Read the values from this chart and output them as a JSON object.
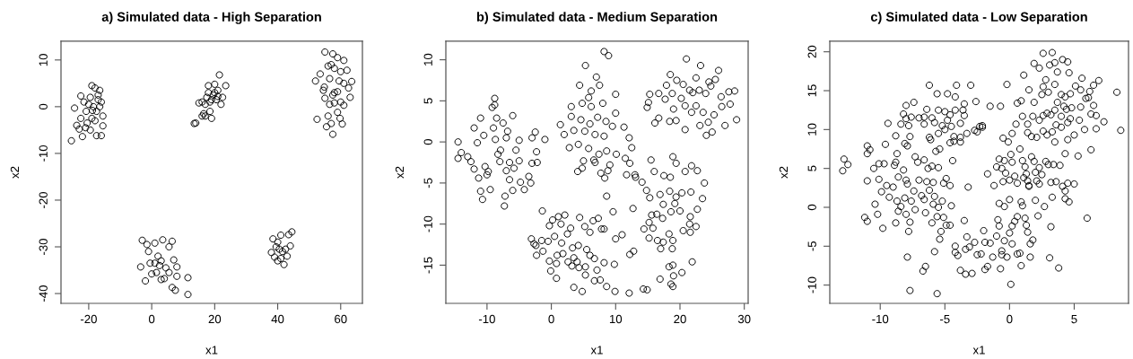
{
  "chart_data": [
    {
      "type": "scatter",
      "title": "a) Simulated data - High Separation",
      "xlabel": "x1",
      "ylabel": "x2",
      "xlim": [
        -28.8,
        66.9
      ],
      "ylim": [
        -42.1,
        14
      ],
      "xticks": [
        -20,
        0,
        20,
        40,
        60
      ],
      "yticks": [
        -40,
        -30,
        -20,
        -10,
        0,
        10
      ],
      "marker": "circle",
      "series": [
        {
          "color": "#000000",
          "x": [
            -25.5,
            -24.5,
            -23.8,
            -23,
            -22.5,
            -22,
            -22.5,
            -21,
            -20.8,
            -19.5,
            -19,
            -18,
            -17.5,
            -16,
            -16.5,
            -15.5,
            -15.5,
            -17,
            -18.5,
            -19,
            -20,
            -17.5,
            -18,
            -16.5,
            -19.5,
            -20.5,
            -17,
            -16,
            -21.5,
            -18.8
          ],
          "values": [
            -7.3,
            -0.3,
            -4,
            -4.8,
            2.3,
            -6.4,
            -2.5,
            -4.5,
            -1,
            -5,
            4.5,
            4,
            -6.2,
            -6.2,
            3.5,
            -4.1,
            -2,
            1.5,
            0,
            -2.5,
            0.5,
            -1,
            -3,
            0,
            2,
            -3.5,
            2.5,
            1,
            1,
            -0.8
          ]
        },
        {
          "color": "#000000",
          "x": [
            13.5,
            14,
            15,
            16,
            16.5,
            17,
            17.5,
            18,
            18.5,
            19,
            19.5,
            20,
            20.5,
            21,
            21.5,
            22,
            22.5,
            23.5,
            20,
            18.5,
            17,
            19,
            21,
            16,
            18
          ],
          "values": [
            -3.6,
            -3.5,
            0.8,
            -2,
            -1.5,
            -2,
            2,
            4.5,
            1,
            -2.5,
            2.5,
            3,
            1.5,
            3.5,
            6.8,
            0.5,
            2,
            4.5,
            4.8,
            -1,
            0.5,
            1.5,
            2.2,
            1,
            3
          ]
        },
        {
          "color": "#000000",
          "x": [
            55,
            57.5,
            59,
            61,
            52,
            53.5,
            54.5,
            52.5,
            55.5,
            57.5,
            56,
            59,
            60.5,
            61,
            62.5,
            63.5,
            63,
            56,
            57,
            58,
            59.5,
            60,
            61,
            58,
            57.5,
            59,
            56.5,
            55,
            58,
            60,
            57,
            59.8,
            56.5,
            62,
            54.8
          ],
          "values": [
            11.7,
            11.3,
            10.5,
            9.9,
            5.5,
            7,
            3.5,
            -2.7,
            -4.3,
            -5.9,
            -2,
            -1.2,
            -3.7,
            0.3,
            4,
            5.4,
            2,
            8.7,
            9,
            8.2,
            5.5,
            7.5,
            5,
            3,
            2.5,
            3.2,
            0.5,
            1.8,
            0.8,
            1,
            -3.6,
            -2.5,
            6,
            7.8,
            4.2
          ]
        },
        {
          "color": "#000000",
          "x": [
            -3.5,
            -2,
            -1.5,
            -3,
            -1,
            1,
            3.5,
            6.5,
            5.5,
            7,
            8,
            8,
            6.5,
            7.5,
            11.5,
            11.5,
            2.5,
            3,
            1.5,
            4,
            0,
            2,
            4.5,
            5.5,
            -0.5,
            3,
            1
          ],
          "values": [
            -34.3,
            -37.3,
            -29.5,
            -28.6,
            -31,
            -29.2,
            -28.5,
            -28.8,
            -30,
            -32.8,
            -34.3,
            -36.3,
            -38.7,
            -39.3,
            -36.6,
            -40.2,
            -34,
            -33,
            -35.5,
            -36.8,
            -35.8,
            -32,
            -34.5,
            -35.5,
            -33.5,
            -37,
            -33.5
          ]
        },
        {
          "color": "#000000",
          "x": [
            38,
            38.5,
            39,
            40,
            41,
            42,
            43.5,
            44.5,
            43,
            44,
            40.5,
            41.5,
            40,
            42.5,
            41,
            39.5
          ],
          "values": [
            -31.2,
            -28.3,
            -32.2,
            -33,
            -27.5,
            -33.8,
            -27.4,
            -26.8,
            -32,
            -29.8,
            -30.5,
            -31,
            -29,
            -30.5,
            -32.5,
            -30
          ]
        }
      ]
    },
    {
      "type": "scatter",
      "title": "b) Simulated data - Medium Separation",
      "xlabel": "x1",
      "ylabel": "x2",
      "xlim": [
        -16.4,
        30.6
      ],
      "ylim": [
        -19.65,
        12.25
      ],
      "xticks": [
        -10,
        0,
        10,
        20,
        30
      ],
      "yticks": [
        -15,
        -10,
        -5,
        0,
        5,
        10
      ],
      "marker": "circle",
      "series": [
        {
          "color": "#000000",
          "x": [
            -14.5,
            -14.5,
            -14,
            -13,
            -12.5,
            -12,
            -11.5,
            -12,
            -11,
            -11,
            -10.7,
            -10.5,
            -10.3,
            -10,
            -9.5,
            -9.2,
            -8.8,
            -8.8,
            -9,
            -8.5,
            -8.7,
            -8.3,
            -8,
            -7.5,
            -7.3,
            -7.2,
            -7,
            -7,
            -6.5,
            -6.5,
            -6,
            -6,
            -5.5,
            -5,
            -5,
            -4.8,
            -4.2,
            -3.5,
            -3.2,
            -3,
            -2.5,
            -2.2,
            -2.3,
            -1,
            -3,
            -9.8,
            -11.3,
            -7.9,
            -6.8,
            -5.8
          ],
          "values": [
            0,
            -2,
            -1.3,
            -1.8,
            -2.4,
            -3.3,
            -0.1,
            1.7,
            2.9,
            -6,
            -7,
            0.8,
            -3,
            -4,
            -5.8,
            4.2,
            5.3,
            4.5,
            1.7,
            2.9,
            0.3,
            -1.5,
            -2.4,
            2.3,
            -7.8,
            -6.6,
            0.5,
            -3.5,
            -4.6,
            -2.5,
            3.2,
            -5.9,
            -1,
            0.2,
            -2.3,
            -4.9,
            -5.8,
            -4.2,
            -5,
            0.5,
            1.2,
            -2.5,
            -1.2,
            0.3,
            -2.6,
            -3.6,
            -4.4,
            -1,
            1.3,
            -3.2
          ]
        },
        {
          "color": "#000000",
          "x": [
            5.3,
            8.2,
            8.9,
            4.4,
            7,
            7.5,
            6.2,
            3.1,
            4.8,
            5.8,
            6.2,
            8,
            10,
            1.4,
            3.1,
            4.6,
            6,
            7.2,
            8.5,
            10,
            2,
            3.5,
            5.2,
            6.8,
            8.2,
            9.5,
            11.3,
            12.1,
            2.8,
            4.2,
            5.8,
            7.4,
            8.6,
            10.1,
            11.5,
            12.5,
            12.2,
            4.1,
            5,
            6.6,
            7.7,
            8.3,
            9.1,
            8.8,
            11.7,
            4.8,
            8.6,
            6.8
          ],
          "values": [
            9.3,
            11,
            10.5,
            6.9,
            7.9,
            6.9,
            6.2,
            4.3,
            4.7,
            5.4,
            4.3,
            4.7,
            5.8,
            2.1,
            3.1,
            2.7,
            2.2,
            3,
            2.5,
            3.5,
            0.9,
            1.4,
            1.3,
            0.9,
            0.7,
            1.9,
            1.8,
            0.5,
            -0.7,
            -0.3,
            -0.8,
            -1.5,
            -1.1,
            -1.5,
            -2,
            -0.7,
            -2.6,
            -3.6,
            -2.3,
            -2.2,
            -3.8,
            -4.4,
            -2.8,
            -3.5,
            -4,
            -3.2,
            -6.6,
            -2.5
          ]
        },
        {
          "color": "#000000",
          "x": [
            21,
            23.2,
            26,
            18.5,
            19.5,
            20.5,
            22.5,
            24.5,
            25.5,
            27.6,
            28.5,
            15.3,
            15.1,
            16.7,
            17.9,
            18.8,
            20.2,
            21.5,
            22,
            23,
            24,
            24.8,
            26.4,
            14.9,
            17.7,
            19,
            20.8,
            22.5,
            23.6,
            25.3,
            26.5,
            27.8,
            16.1,
            16.7,
            18.4,
            19.4,
            20.8,
            23.1,
            24.1,
            25,
            27,
            28.8,
            21.8,
            24.4
          ],
          "values": [
            10.1,
            9.3,
            8.7,
            8.2,
            7.5,
            7,
            7.8,
            7.3,
            7.6,
            6.1,
            6.2,
            5.8,
            4.8,
            5.9,
            6.9,
            5.9,
            5.3,
            6.3,
            6,
            6.3,
            5.9,
            6.8,
            5.5,
            4.2,
            5.2,
            4,
            4.4,
            4.4,
            3.6,
            3.3,
            4.3,
            4.6,
            2.3,
            2.9,
            2.5,
            2.6,
            1.5,
            2,
            0.8,
            1.2,
            2,
            2.7,
            3.6,
            2.4
          ]
        },
        {
          "color": "#000000",
          "x": [
            15.5,
            16,
            18.9,
            19.4,
            21.8,
            22.7,
            20.8,
            23.8,
            17.5,
            18.5,
            16.9,
            15.3,
            17.4,
            18.4,
            19.4,
            20.3,
            21.7,
            23.5,
            22.7,
            14.4,
            15.2,
            15.6,
            16.4,
            17.3,
            18.6,
            19.2,
            20,
            21.6,
            21.5,
            22.5,
            20.5,
            21.6,
            15.2,
            15.8,
            16.5,
            17.4,
            17,
            18.3,
            18.9,
            18.8,
            18.3,
            18.9,
            18.6,
            18.9,
            19,
            20.3,
            21.9,
            16.9,
            12.7,
            13.1,
            14.1,
            14.8,
            13
          ],
          "values": [
            -2.2,
            -3.6,
            -1.8,
            -2.6,
            -2.9,
            -3.5,
            -3.6,
            -5,
            -4.1,
            -4.3,
            -6.4,
            -6.8,
            -7.6,
            -6,
            -6.7,
            -6.2,
            -6.1,
            -6.9,
            -8.2,
            -10.6,
            -9.8,
            -8.9,
            -8.8,
            -9.3,
            -8.5,
            -7.5,
            -8.4,
            -9.1,
            -10,
            -10.3,
            -10.8,
            -11,
            -11.7,
            -10.5,
            -12,
            -12.2,
            -13,
            -11.2,
            -12,
            -13,
            -15.2,
            -15,
            -17.3,
            -17.6,
            -16.3,
            -15.9,
            -14.6,
            -16.7,
            -8.1,
            -4.3,
            -4.9,
            -5.9,
            -4
          ]
        },
        {
          "color": "#000000",
          "x": [
            -1.4,
            0.2,
            1.1,
            2.1,
            4.4,
            6.5,
            7.3,
            -0.3,
            1.5,
            3,
            5.2,
            6,
            7.8,
            -3.1,
            -2.4,
            -1.5,
            -0.5,
            0.5,
            1.6,
            2.5,
            3.3,
            4.2,
            -2.7,
            -2.3,
            -1.3,
            0.9,
            1.8,
            3.5,
            4,
            5.5,
            6,
            6.7,
            -0.3,
            0.8,
            2.6,
            3.2,
            4.3,
            5.3,
            7.1,
            -0.1,
            0.8,
            5.3,
            6.7,
            7.6,
            8.2,
            3.5,
            4.8,
            8.6,
            9.9,
            12.1,
            14.3,
            14.9,
            9.8,
            10,
            11,
            12.2,
            12.8,
            9.6,
            8.2
          ],
          "values": [
            -8.4,
            -9.5,
            -9.1,
            -8.9,
            -9.2,
            -9.6,
            -9.3,
            -10.2,
            -10,
            -10.5,
            -10.3,
            -11,
            -10.6,
            -11.8,
            -12.6,
            -12,
            -12.1,
            -11.5,
            -12.3,
            -11.2,
            -12.9,
            -12.6,
            -12.4,
            -13.8,
            -13.3,
            -13.8,
            -13.6,
            -14.1,
            -14.6,
            -13.1,
            -13.8,
            -14.2,
            -14.5,
            -14.8,
            -14.6,
            -15.1,
            -15.3,
            -15.2,
            -15.6,
            -15.7,
            -16.6,
            -16.2,
            -16.9,
            -16.8,
            -14.7,
            -17.7,
            -18.2,
            -17.6,
            -18.2,
            -18.4,
            -17.9,
            -18,
            -14.9,
            -11.8,
            -11.3,
            -13.7,
            -13.3,
            -8.5,
            -10.6
          ]
        }
      ]
    },
    {
      "type": "scatter",
      "title": "c) Simulated data - Low Separation",
      "xlabel": "x1",
      "ylabel": "x2",
      "xlim": [
        -13.9,
        9.2
      ],
      "ylim": [
        -12.35,
        21.35
      ],
      "xticks": [
        -10,
        -5,
        0,
        5
      ],
      "yticks": [
        -10,
        -5,
        0,
        5,
        10,
        15,
        20
      ],
      "marker": "circle",
      "series": [
        {
          "color": "#000000",
          "x": [
            -8,
            -7.4,
            -6.2,
            -5.6,
            -4.8,
            -4.2,
            -4.1,
            -3,
            -2.6,
            -3.5,
            -6.4,
            -8.2,
            -8,
            -7.6,
            -7,
            -6.6,
            -6,
            -5.5,
            -5,
            -4.6,
            -4.2,
            -3.6,
            -3.5,
            -9.4,
            -8.4,
            -7.8,
            -6.6,
            -5.8,
            -5.2,
            -4.8,
            -4.5,
            -3.8,
            -2.7,
            -2.3,
            -2.1,
            -8.8,
            -7.7,
            -6.2,
            -5.5,
            -5,
            -4.3,
            -3.8,
            -3.3,
            -2.5,
            -8.1,
            -7.9,
            -5.7,
            -5.4,
            -4.6,
            -4.3,
            -3.8,
            -6.1,
            -9.6,
            -11,
            -10.8,
            -11,
            -8.7,
            -4.4,
            -3.2
          ],
          "values": [
            13.1,
            13.5,
            15.7,
            14.6,
            14.6,
            14.2,
            15.7,
            15.7,
            13.6,
            13.3,
            12.6,
            12,
            11.4,
            11.6,
            11.5,
            11.6,
            11.5,
            12.5,
            12.3,
            11.9,
            12.5,
            12.5,
            11.8,
            10.8,
            10.7,
            10.5,
            10.7,
            10.9,
            10.5,
            11.2,
            10.4,
            10.8,
            9.9,
            10.4,
            10.5,
            9.2,
            9.1,
            9,
            9.5,
            10,
            9.1,
            9,
            9.5,
            9.7,
            8.2,
            7.9,
            7.2,
            7.5,
            8.3,
            8.5,
            8.4,
            8.7,
            8.1,
            7.9,
            7.4,
            6.9,
            6.9,
            6,
            2.6
          ]
        },
        {
          "color": "#000000",
          "x": [
            -12.9,
            -12.8,
            -12.5,
            -11,
            -10.5,
            -10.1,
            -9.7,
            -10.1,
            -9.9,
            -9.5,
            -9.3,
            -9,
            -8.8,
            -8.9,
            -8.6,
            -8.2,
            -8,
            -7.9,
            -7.3,
            -7.1,
            -6.6,
            -6.3,
            -6,
            -5.5,
            -7,
            -6.4,
            -5.9,
            -7.4,
            -6.8,
            -6.2,
            -5.8,
            -5.1,
            -4.9,
            -4.6,
            -8.7,
            -8.4,
            -8.1,
            -7.6,
            -6.6,
            -5.9,
            -5.5,
            -5.2,
            -4.5,
            -8.6,
            -8,
            -7.3,
            -6.5,
            -6,
            -5.6,
            -5.1,
            -4.9,
            -11.2,
            -11,
            -10.4,
            -10.2,
            -9.8,
            -8.8,
            -7.7,
            -7.8,
            -7.9,
            -7.7,
            -6.5,
            -6.7,
            -5.8,
            -5.4,
            -5.3,
            -5.6
          ],
          "values": [
            4.7,
            6.2,
            5.5,
            3.4,
            5,
            5.6,
            5.6,
            3.6,
            2,
            2.8,
            1.3,
            2.6,
            5.8,
            5.4,
            3.9,
            4.8,
            3.5,
            3,
            6.5,
            5.8,
            6.1,
            5,
            5.3,
            5.1,
            3.5,
            3.3,
            3.2,
            2.1,
            1.5,
            2.2,
            1.4,
            3.1,
            3.7,
            2.8,
            0.8,
            0.1,
            1.2,
            0.8,
            1,
            0.4,
            0,
            0.8,
            0.2,
            -0.5,
            -0.9,
            -0.3,
            -0.7,
            -2,
            -1.2,
            -1.3,
            -2.3,
            -1.3,
            -1.8,
            0.4,
            -0.9,
            -2.7,
            -2,
            -1.9,
            -3.1,
            -6.4,
            -10.7,
            -7.6,
            -8.2,
            -5.7,
            -4.1,
            -3.1,
            -11.1
          ]
        },
        {
          "color": "#000000",
          "x": [
            -3.5,
            -4.2,
            -4.2,
            -4,
            -3.3,
            -3.4,
            -3.1,
            -2.7,
            -2.5,
            -2,
            -1.9,
            -1.5,
            -1.3,
            -1.7,
            -1.9,
            -3.8,
            -3.4,
            -2.9,
            -1,
            -0.9,
            -0.8,
            -0.6,
            -0.6,
            -0.4,
            -0.2,
            -0.7,
            0,
            0.2,
            0.4,
            0.6,
            0.2,
            0.6,
            0.8,
            0.9,
            1.2,
            1.3,
            1.4,
            1.6,
            1.8,
            1.6,
            0.1,
            3.1,
            3.8,
            3.2,
            -4.6,
            -2.2
          ],
          "values": [
            -1.7,
            -5,
            -5.8,
            -6.2,
            -3.8,
            -5.4,
            -5.1,
            -4.5,
            -6.1,
            -3,
            -4.5,
            -4.6,
            -6.4,
            -7.6,
            -8,
            -8.1,
            -8.6,
            -8.5,
            -3.7,
            -1.6,
            -2.4,
            -5.6,
            -6.1,
            -4.3,
            -6.4,
            -7.9,
            -3.3,
            -2.4,
            -1.8,
            -1.2,
            -4.7,
            -6,
            -5.9,
            -7.5,
            -1.4,
            -2.3,
            -3.2,
            -4.7,
            -4.2,
            -6.4,
            -9.9,
            -6.5,
            -7.8,
            -2.5,
            -2.3,
            -6
          ]
        },
        {
          "color": "#000000",
          "x": [
            -1.7,
            -1.2,
            -0.8,
            -1,
            -0.6,
            -0.4,
            -0.3,
            0.1,
            0.2,
            -0.5,
            0,
            -0.8,
            -0.4,
            0,
            0.4,
            0.6,
            0.8,
            1,
            1.2,
            1.3,
            1.1,
            1.4,
            1.5,
            1.7,
            1.9,
            2,
            2.1,
            2.3,
            2.3,
            2.5,
            2.8,
            3,
            3.2,
            3.4,
            3.6,
            3.3,
            2.7,
            2.2,
            2,
            1,
            0.9,
            4.1,
            4.3,
            4.5,
            4.3,
            4.6,
            5,
            3.9,
            1.5
          ],
          "values": [
            4.3,
            2.8,
            6.2,
            5.2,
            5,
            6,
            4.4,
            6.8,
            5.8,
            3.3,
            3.5,
            0.5,
            0.1,
            1,
            4,
            3.1,
            7.5,
            6,
            5.2,
            4.3,
            3.8,
            3.4,
            2.8,
            6.5,
            5.9,
            4.5,
            3.4,
            3,
            5.1,
            4.2,
            5.9,
            5.5,
            3.2,
            5.5,
            3.3,
            1.3,
            0.1,
            -1.1,
            0.9,
            0.2,
            0.7,
            2.7,
            2.1,
            3.1,
            1.1,
            0.7,
            3,
            5.4,
            2.7
          ]
        },
        {
          "color": "#000000",
          "x": [
            2.6,
            3.3,
            4.1,
            4.5,
            1.9,
            2.3,
            3.1,
            3.5,
            3.7,
            4.6,
            1.1,
            1.5,
            2.5,
            2.6,
            2.8,
            3.5,
            3,
            4,
            4.3,
            4.7,
            5.1,
            5.6,
            5.5,
            6.5,
            6.9,
            6.2,
            6.1,
            5.9,
            7.3,
            8.3,
            8.6,
            5.5,
            6.5,
            6.3,
            6.7,
            6.7,
            6.3,
            5.8,
            5.4,
            5,
            4.8,
            4.7,
            4.4,
            4.2,
            4,
            4.5,
            4,
            4.5,
            4.3,
            3.7,
            3.5,
            3.2,
            2.9,
            2.6,
            3.6,
            3.5,
            3.3,
            2.9,
            2.6,
            2.3,
            1.8,
            1.7,
            1.4,
            1,
            1.4,
            0.5,
            0.2,
            -0.1,
            -0.5,
            -0.2,
            -0.7,
            -1.5,
            0.6,
            0.9,
            1.9,
            2.1,
            6,
            5.3,
            -2.1
          ],
          "values": [
            19.8,
            19.9,
            19,
            18.7,
            18.5,
            17.9,
            18.3,
            18.6,
            17.4,
            17.3,
            17,
            15.1,
            14.5,
            15.5,
            16.4,
            15.8,
            14.8,
            14.5,
            14.2,
            14.6,
            15.6,
            16.6,
            15.1,
            15.7,
            16.3,
            14.9,
            14.1,
            14,
            11,
            14.8,
            9.9,
            12.9,
            13.1,
            12,
            11.8,
            10.1,
            7.4,
            10,
            11.2,
            9.3,
            12.8,
            11.4,
            12.6,
            13,
            11.7,
            10.9,
            10.3,
            8.7,
            6.9,
            13.5,
            12.5,
            11.9,
            12.1,
            11.8,
            10.6,
            8.4,
            9.7,
            9.3,
            9.8,
            11.2,
            11.7,
            9.1,
            10.7,
            11.7,
            9.6,
            10.7,
            9.5,
            8.4,
            8.9,
            15.8,
            13,
            13,
            13.4,
            13.7,
            13.5,
            9,
            -1.4,
            6.6,
            10.3
          ]
        }
      ]
    }
  ]
}
